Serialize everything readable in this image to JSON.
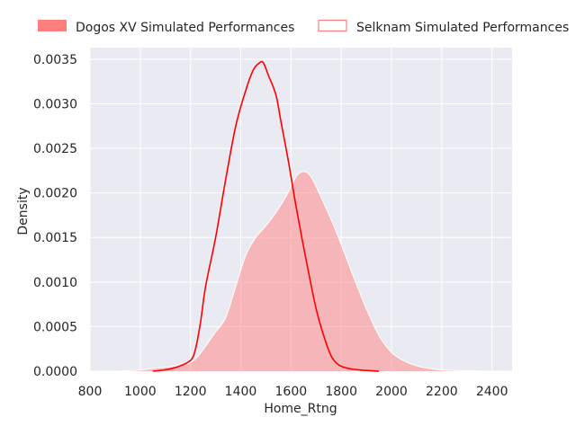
{
  "chart_data": {
    "type": "area",
    "title": "",
    "xlabel": "Home_Rtng",
    "ylabel": "Density",
    "xlim": [
      800,
      2480
    ],
    "ylim": [
      0,
      0.00363
    ],
    "xticks": [
      800,
      1000,
      1200,
      1400,
      1600,
      1800,
      2000,
      2200,
      2400
    ],
    "xtick_labels": [
      "800",
      "1000",
      "1200",
      "1400",
      "1600",
      "1800",
      "2000",
      "2200",
      "2400"
    ],
    "yticks": [
      0,
      0.0005,
      0.001,
      0.0015,
      0.002,
      0.0025,
      0.003,
      0.0035
    ],
    "ytick_labels": [
      "0.0000",
      "0.0005",
      "0.0010",
      "0.0015",
      "0.0020",
      "0.0025",
      "0.0030",
      "0.0035"
    ],
    "grid": true,
    "legend_position": "top",
    "series": [
      {
        "name": "Dogos XV Simulated Performances",
        "style": "filled",
        "color": "#ff7f7f",
        "points": [
          [
            880,
            0.0
          ],
          [
            940,
            4e-06
          ],
          [
            1000,
            1.2e-05
          ],
          [
            1050,
            3e-05
          ],
          [
            1100,
            4.5e-05
          ],
          [
            1150,
            6e-05
          ],
          [
            1200,
            9.5e-05
          ],
          [
            1230,
            0.00017
          ],
          [
            1260,
            0.00028
          ],
          [
            1300,
            0.00044
          ],
          [
            1340,
            0.0006
          ],
          [
            1380,
            0.00095
          ],
          [
            1420,
            0.0013
          ],
          [
            1460,
            0.0015
          ],
          [
            1500,
            0.00163
          ],
          [
            1540,
            0.00178
          ],
          [
            1580,
            0.00196
          ],
          [
            1620,
            0.00218
          ],
          [
            1650,
            0.00224
          ],
          [
            1680,
            0.00218
          ],
          [
            1720,
            0.00195
          ],
          [
            1760,
            0.0017
          ],
          [
            1800,
            0.00142
          ],
          [
            1850,
            0.00105
          ],
          [
            1900,
            0.0007
          ],
          [
            1950,
            0.0004
          ],
          [
            2000,
            0.00021
          ],
          [
            2050,
            0.000115
          ],
          [
            2100,
            6e-05
          ],
          [
            2150,
            3e-05
          ],
          [
            2200,
            1.4e-05
          ],
          [
            2300,
            5e-06
          ],
          [
            2410,
            0.0
          ]
        ]
      },
      {
        "name": "Selknam Simulated Performances",
        "style": "line",
        "color": "#ff0000",
        "points": [
          [
            1050,
            0.0
          ],
          [
            1100,
            1.5e-05
          ],
          [
            1150,
            5e-05
          ],
          [
            1200,
            0.00012
          ],
          [
            1220,
            0.00025
          ],
          [
            1240,
            0.00055
          ],
          [
            1260,
            0.00095
          ],
          [
            1300,
            0.0015
          ],
          [
            1340,
            0.00215
          ],
          [
            1380,
            0.00275
          ],
          [
            1420,
            0.00315
          ],
          [
            1450,
            0.00338
          ],
          [
            1475,
            0.00346
          ],
          [
            1490,
            0.00346
          ],
          [
            1510,
            0.00332
          ],
          [
            1540,
            0.0031
          ],
          [
            1560,
            0.0028
          ],
          [
            1590,
            0.00235
          ],
          [
            1620,
            0.00185
          ],
          [
            1660,
            0.00125
          ],
          [
            1700,
            0.0007
          ],
          [
            1730,
            0.0004
          ],
          [
            1760,
            0.00017
          ],
          [
            1790,
            7e-05
          ],
          [
            1830,
            3e-05
          ],
          [
            1880,
            1.2e-05
          ],
          [
            1950,
            0.0
          ]
        ]
      }
    ]
  }
}
